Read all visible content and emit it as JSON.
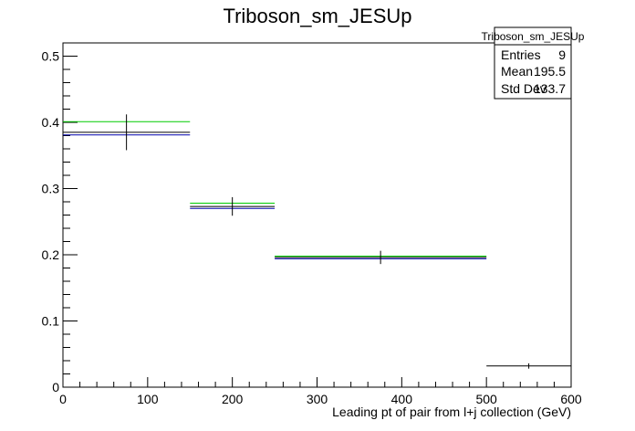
{
  "chart_data": {
    "type": "histogram",
    "title": "Triboson_sm_JESUp",
    "xlabel": "Leading pt of pair from l+j collection (GeV)",
    "ylabel": "",
    "xlim": [
      0,
      600
    ],
    "ylim": [
      0,
      0.52
    ],
    "x_ticks": [
      0,
      100,
      200,
      300,
      400,
      500,
      600
    ],
    "y_ticks": [
      0,
      0.1,
      0.2,
      0.3,
      0.4,
      0.5
    ],
    "x_tick_labels": [
      "0",
      "100",
      "200",
      "300",
      "400",
      "500",
      "600"
    ],
    "y_tick_labels": [
      "0",
      "0.1",
      "0.2",
      "0.3",
      "0.4",
      "0.5"
    ],
    "grid": false,
    "bins": [
      {
        "low": 0,
        "high": 150
      },
      {
        "low": 150,
        "high": 250
      },
      {
        "low": 250,
        "high": 500
      },
      {
        "low": 500,
        "high": 600
      }
    ],
    "series": [
      {
        "color": "#00cc00",
        "values": [
          0.401,
          0.278,
          0.198,
          null
        ],
        "errors": [
          null,
          null,
          null,
          null
        ]
      },
      {
        "color": "#0000aa",
        "values": [
          0.381,
          0.27,
          0.194,
          null
        ],
        "errors": [
          null,
          null,
          null,
          null
        ]
      },
      {
        "color": "#000000",
        "values": [
          0.385,
          0.273,
          0.196,
          0.032
        ],
        "errors": [
          0.027,
          0.014,
          0.01,
          0.004
        ]
      }
    ],
    "stats_box": {
      "title": "Triboson_sm_JESUp",
      "rows": [
        {
          "label": "Entries",
          "value": "9"
        },
        {
          "label": "Mean",
          "value": "195.5"
        },
        {
          "label": "Std Dev",
          "value": "133.7"
        }
      ],
      "placement": "top-right"
    }
  }
}
